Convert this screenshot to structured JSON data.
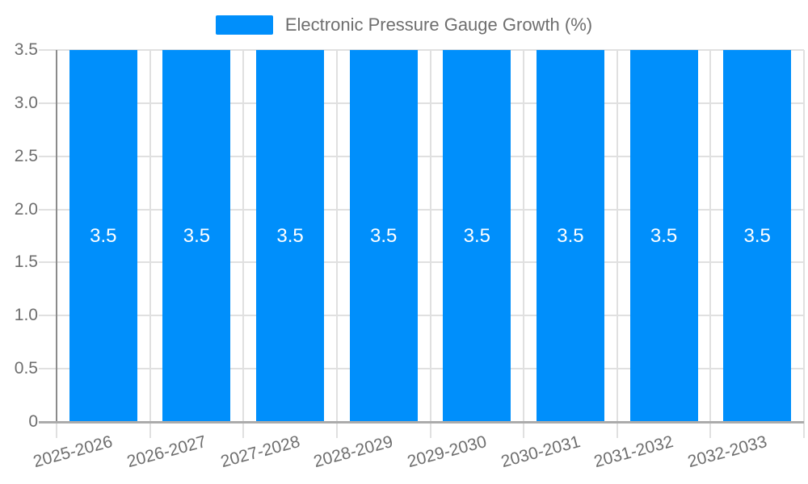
{
  "chart_data": {
    "type": "bar",
    "title": "Electronic Pressure Gauge Growth (%)",
    "categories": [
      "2025-2026",
      "2026-2027",
      "2027-2028",
      "2028-2029",
      "2029-2030",
      "2030-2031",
      "2031-2032",
      "2032-2033"
    ],
    "series": [
      {
        "name": "Electronic Pressure Gauge Growth (%)",
        "values": [
          3.5,
          3.5,
          3.5,
          3.5,
          3.5,
          3.5,
          3.5,
          3.5
        ]
      }
    ],
    "data_labels": [
      "3.5",
      "3.5",
      "3.5",
      "3.5",
      "3.5",
      "3.5",
      "3.5",
      "3.5"
    ],
    "xlabel": "",
    "ylabel": "",
    "ylim": [
      0,
      3.5
    ],
    "yticks": {
      "values": [
        3.5,
        3.0,
        2.5,
        2.0,
        1.5,
        1.0,
        0.5,
        0
      ],
      "labels": [
        "3.5",
        "3.0",
        "2.5",
        "2.0",
        "1.5",
        "1.0",
        "0.5",
        "0"
      ]
    },
    "grid": "on",
    "x_gridlines": "between-categories",
    "legend_position": "top-center",
    "x_label_rotation_deg": -15,
    "colors": {
      "bar": "#008FFB",
      "grid": "#e0e0e0",
      "y_axis_line": "#8b8b8b",
      "x_axis_line": "#ababab",
      "axis_text": "#6e6e6e",
      "data_label_text": "#ffffff",
      "background": "#ffffff"
    }
  }
}
